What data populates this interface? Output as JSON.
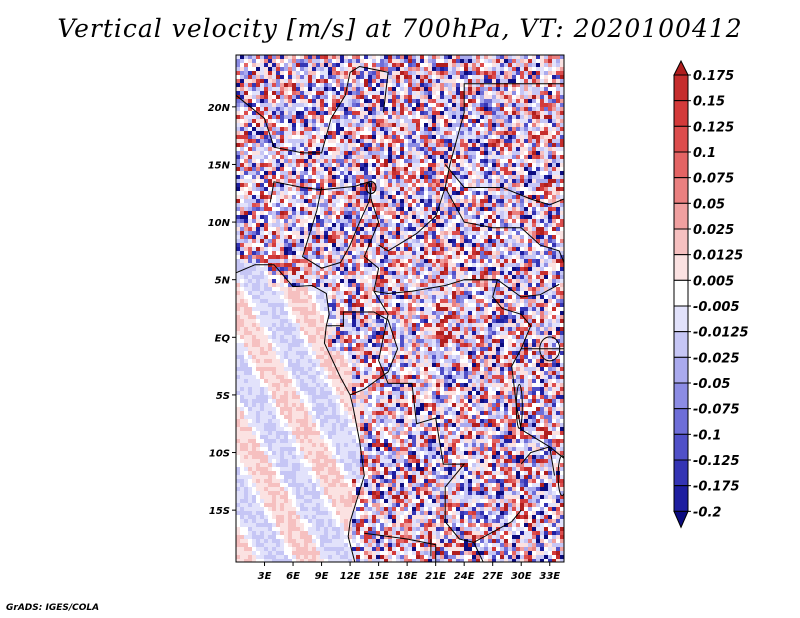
{
  "title": "Vertical velocity [m/s] at 700hPa, VT: 2020100412",
  "footer": "GrADS: IGES/COLA",
  "map": {
    "variable": "Vertical velocity",
    "units": "m/s",
    "level": "700hPa",
    "valid_time": "2020100412",
    "lon_range": [
      0,
      34.5
    ],
    "lat_range": [
      -19.5,
      24.5
    ],
    "x_ticks": [
      {
        "lon": 3,
        "label": "3E"
      },
      {
        "lon": 6,
        "label": "6E"
      },
      {
        "lon": 9,
        "label": "9E"
      },
      {
        "lon": 12,
        "label": "12E"
      },
      {
        "lon": 15,
        "label": "15E"
      },
      {
        "lon": 18,
        "label": "18E"
      },
      {
        "lon": 21,
        "label": "21E"
      },
      {
        "lon": 24,
        "label": "24E"
      },
      {
        "lon": 27,
        "label": "27E"
      },
      {
        "lon": 30,
        "label": "30E"
      },
      {
        "lon": 33,
        "label": "33E"
      }
    ],
    "y_ticks": [
      {
        "lat": 20,
        "label": "20N"
      },
      {
        "lat": 15,
        "label": "15N"
      },
      {
        "lat": 10,
        "label": "10N"
      },
      {
        "lat": 5,
        "label": "5N"
      },
      {
        "lat": 0,
        "label": "EQ"
      },
      {
        "lat": -5,
        "label": "5S"
      },
      {
        "lat": -10,
        "label": "10S"
      },
      {
        "lat": -15,
        "label": "15S"
      }
    ]
  },
  "colorbar": {
    "labels": [
      "0.175",
      "0.15",
      "0.125",
      "0.1",
      "0.075",
      "0.05",
      "0.025",
      "0.0125",
      "0.005",
      "-0.005",
      "-0.0125",
      "-0.025",
      "-0.05",
      "-0.075",
      "-0.1",
      "-0.125",
      "-0.175",
      "-0.2"
    ],
    "colors": [
      "#b01e1e",
      "#c52d2d",
      "#d33a3a",
      "#dc4d4d",
      "#e36464",
      "#ea8080",
      "#f0a0a0",
      "#f6c0c0",
      "#fbe2e2",
      "#ffffff",
      "#e2e2fb",
      "#c6c6f5",
      "#aaaaee",
      "#8c8ce4",
      "#6e6ed8",
      "#5050c8",
      "#3434b4",
      "#1e1ea0",
      "#0c0c80"
    ]
  }
}
